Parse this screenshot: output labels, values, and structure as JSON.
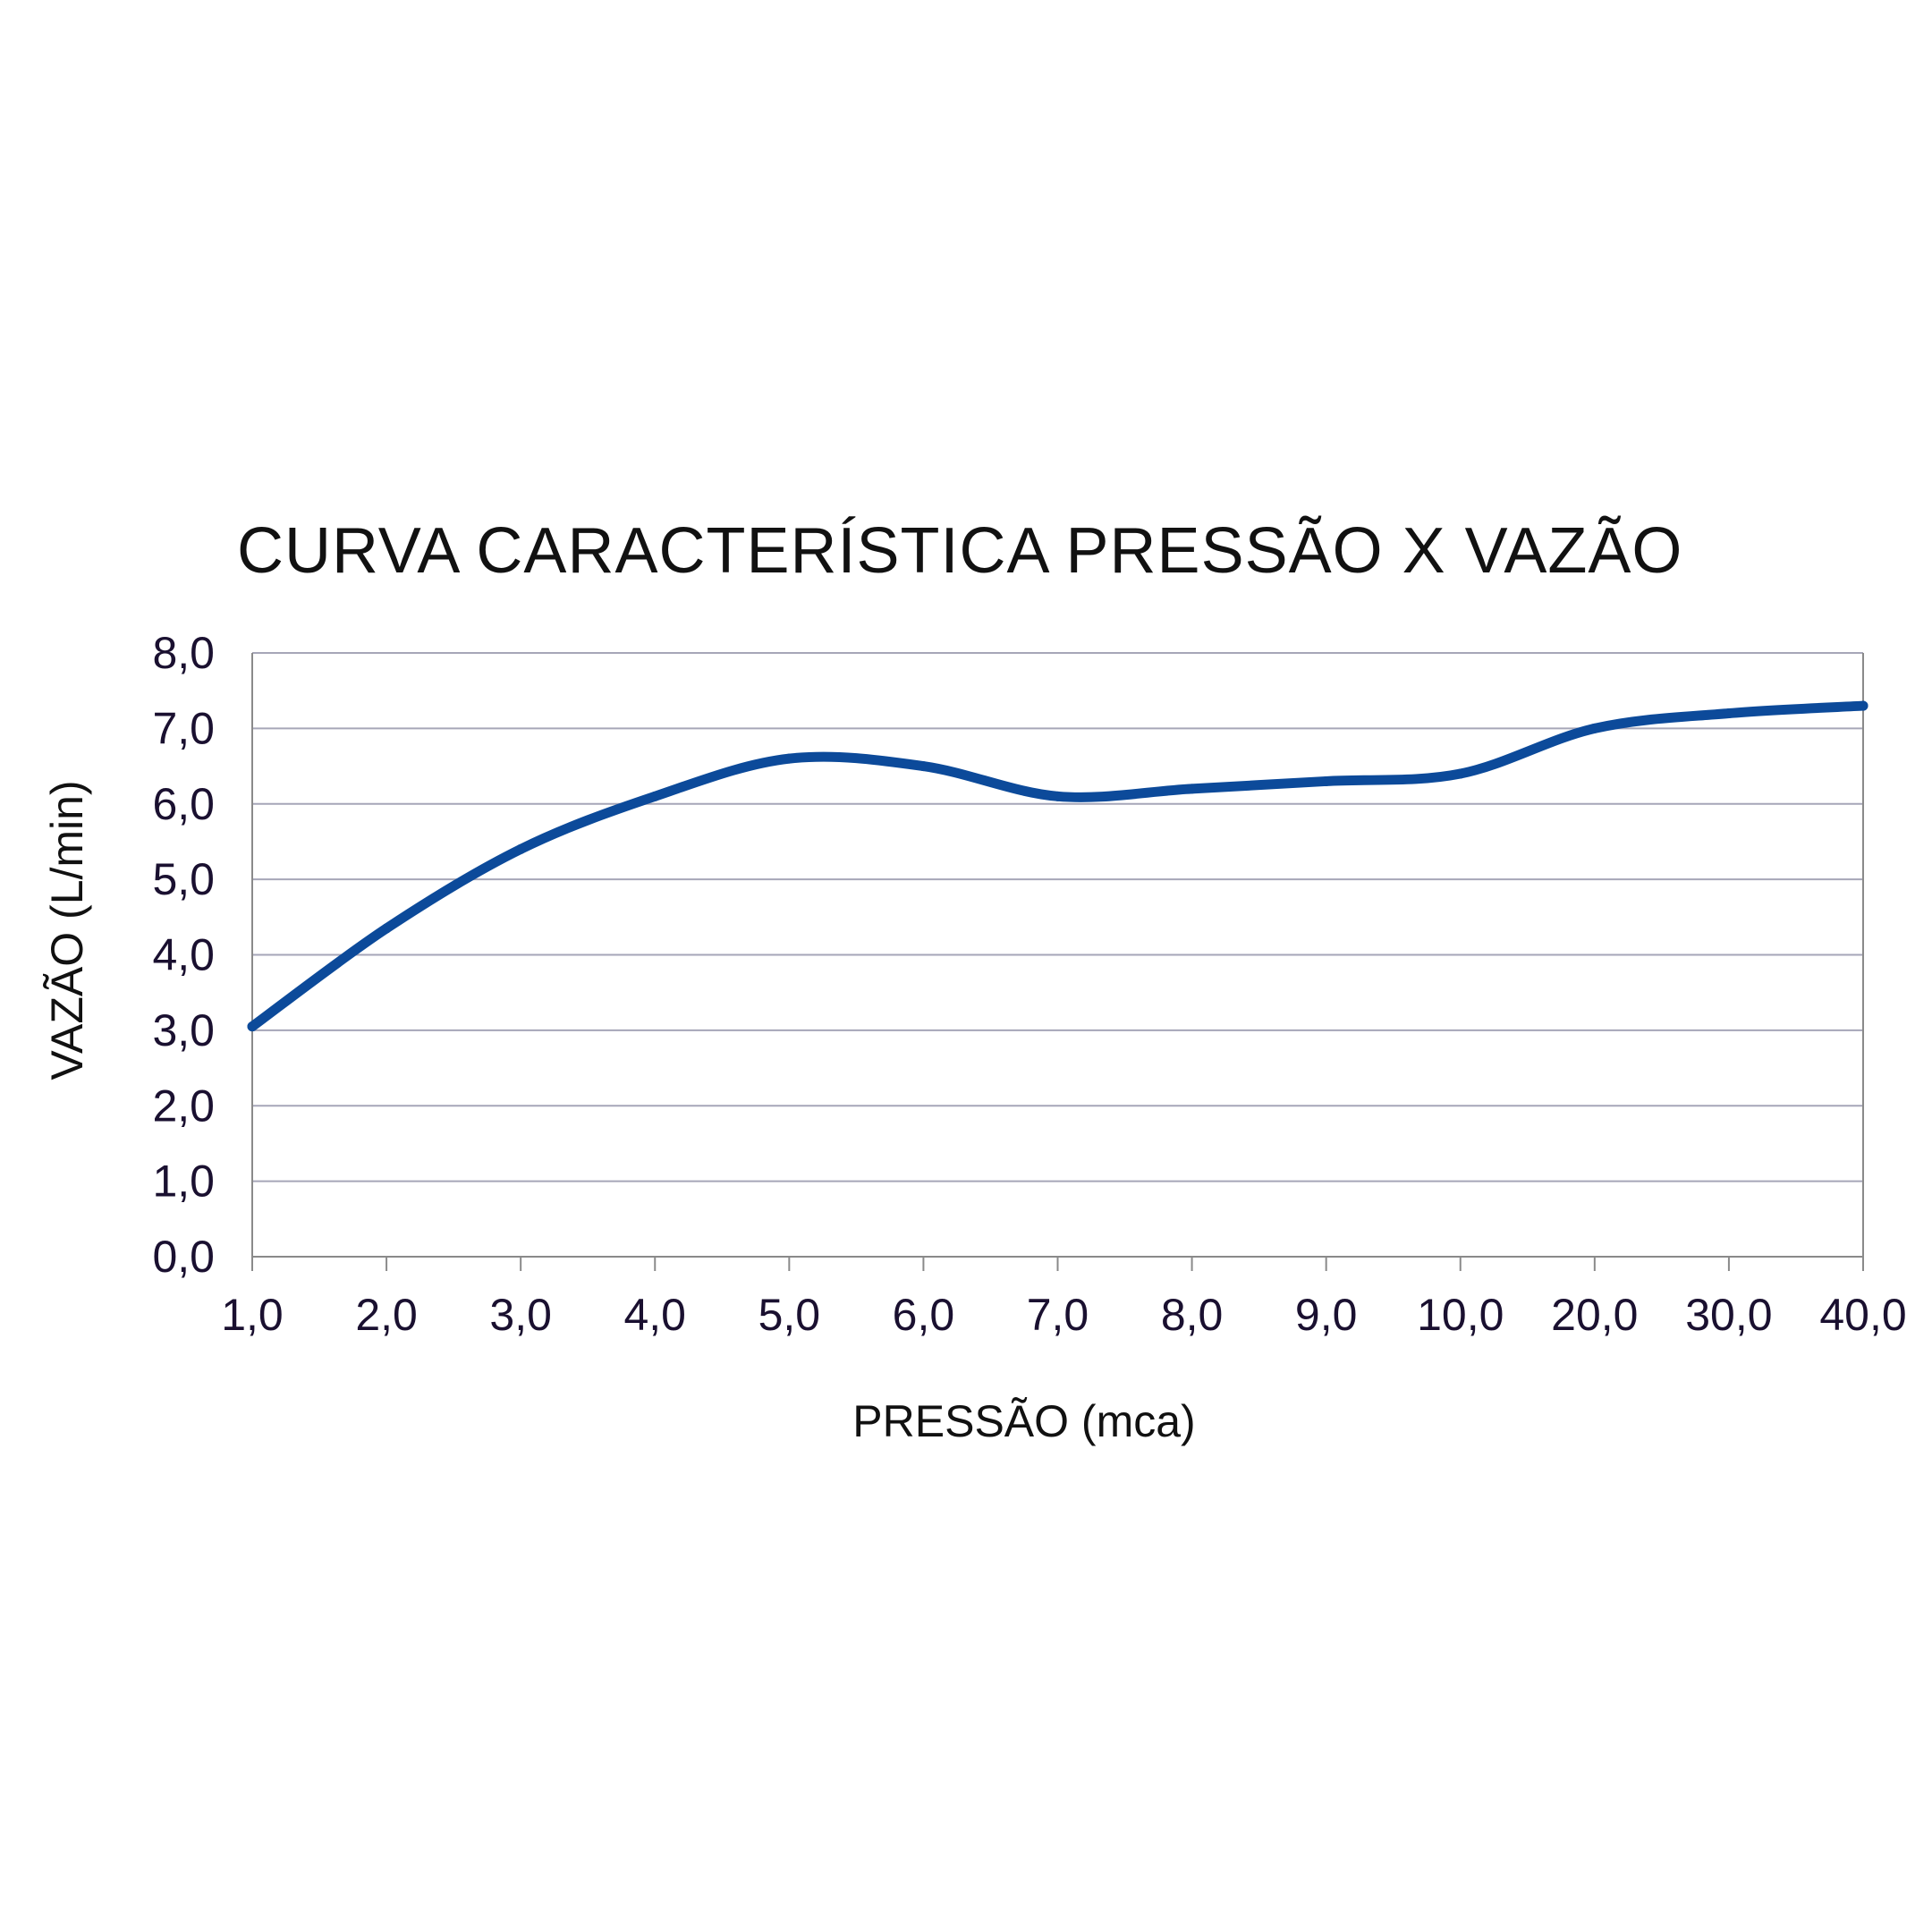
{
  "chart_data": {
    "type": "line",
    "title": "CURVA CARACTERÍSTICA PRESSÃO X VAZÃO",
    "xlabel": "PRESSÃO (mca)",
    "ylabel": "VAZÃO (L/min)",
    "categories": [
      "1,0",
      "2,0",
      "3,0",
      "4,0",
      "5,0",
      "6,0",
      "7,0",
      "8,0",
      "9,0",
      "10,0",
      "20,0",
      "30,0",
      "40,0"
    ],
    "y_ticks": [
      "0,0",
      "1,0",
      "2,0",
      "3,0",
      "4,0",
      "5,0",
      "6,0",
      "7,0",
      "8,0"
    ],
    "ylim": [
      0,
      8
    ],
    "grid": "horizontal",
    "series": [
      {
        "values": [
          3.05,
          4.35,
          5.4,
          6.1,
          6.6,
          6.5,
          6.1,
          6.2,
          6.3,
          6.4,
          7.0,
          7.2,
          7.3
        ]
      }
    ],
    "colors": {
      "line": "#0c4a9a",
      "grid": "#a6a6b8",
      "axis": "#8a8a8a"
    }
  }
}
